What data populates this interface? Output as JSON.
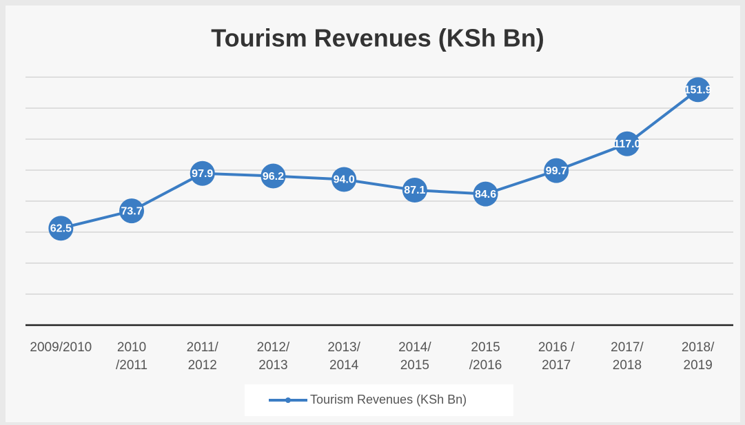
{
  "chart_data": {
    "type": "line",
    "title": "Tourism Revenues (KSh Bn)",
    "categories": [
      "2009/2010",
      "2010\n/2011",
      "2011/\n2012",
      "2012/\n2013",
      "2013/\n2014",
      "2014/\n2015",
      "2015\n/2016",
      "2016 /\n2017",
      "2017/\n2018",
      "2018/\n2019"
    ],
    "series": [
      {
        "name": "Tourism Revenues (KSh Bn)",
        "color": "#3b7dc4",
        "values": [
          62.5,
          73.7,
          97.9,
          96.2,
          94.0,
          87.1,
          84.6,
          99.7,
          117.0,
          151.9
        ],
        "value_labels": [
          "62.5",
          "73.7",
          "97.9",
          "96.2",
          "94.0",
          "87.1",
          "84.6",
          "99.7",
          "117.0",
          "151.9"
        ]
      }
    ],
    "ylim": [
      0,
      160
    ],
    "yticks": [
      0,
      20,
      40,
      60,
      80,
      100,
      120,
      140,
      160
    ],
    "grid": true,
    "legend": "bottom"
  }
}
